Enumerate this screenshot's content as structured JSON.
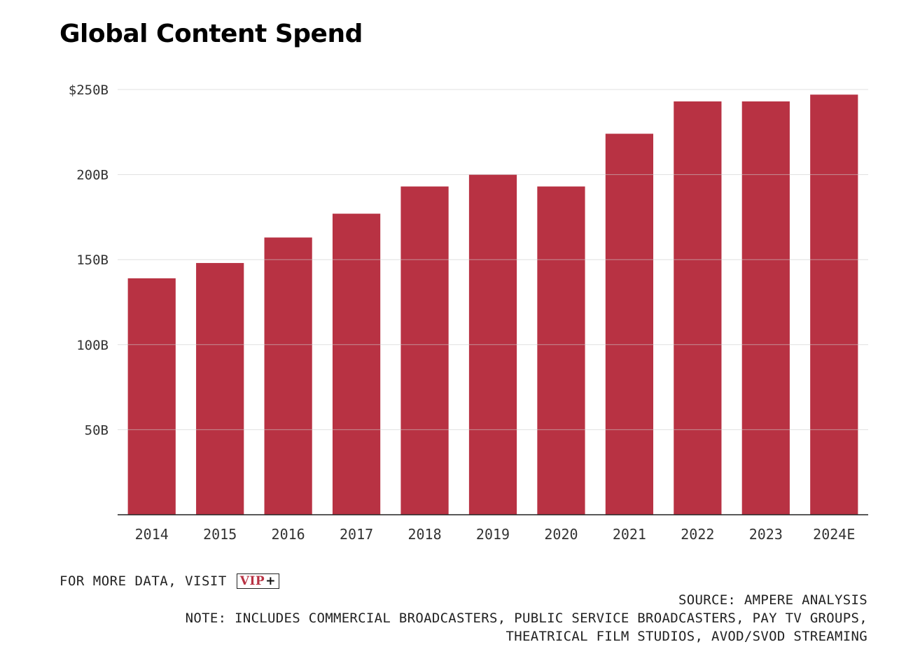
{
  "chart_data": {
    "type": "bar",
    "title": "Global Content Spend",
    "categories": [
      "2014",
      "2015",
      "2016",
      "2017",
      "2018",
      "2019",
      "2020",
      "2021",
      "2022",
      "2023",
      "2024E"
    ],
    "values": [
      139,
      148,
      163,
      177,
      193,
      200,
      193,
      224,
      243,
      243,
      247
    ],
    "unit": "$B",
    "ylim": [
      0,
      250
    ],
    "y_ticks": [
      {
        "value": 50,
        "label": "50B"
      },
      {
        "value": 100,
        "label": "100B"
      },
      {
        "value": 150,
        "label": "150B"
      },
      {
        "value": 200,
        "label": "200B"
      },
      {
        "value": 250,
        "label": "$250B"
      }
    ],
    "grid": true,
    "bar_color": "#b83243",
    "grid_color": "#cccccc"
  },
  "footer": {
    "visit_label": "FOR MORE DATA, VISIT",
    "vip_text": "VIP",
    "vip_plus": "+",
    "source": "SOURCE: AMPERE ANALYSIS",
    "note_line1": "NOTE: INCLUDES COMMERCIAL BROADCASTERS, PUBLIC SERVICE BROADCASTERS, PAY TV GROUPS,",
    "note_line2": "THEATRICAL FILM STUDIOS, AVOD/SVOD STREAMING"
  }
}
